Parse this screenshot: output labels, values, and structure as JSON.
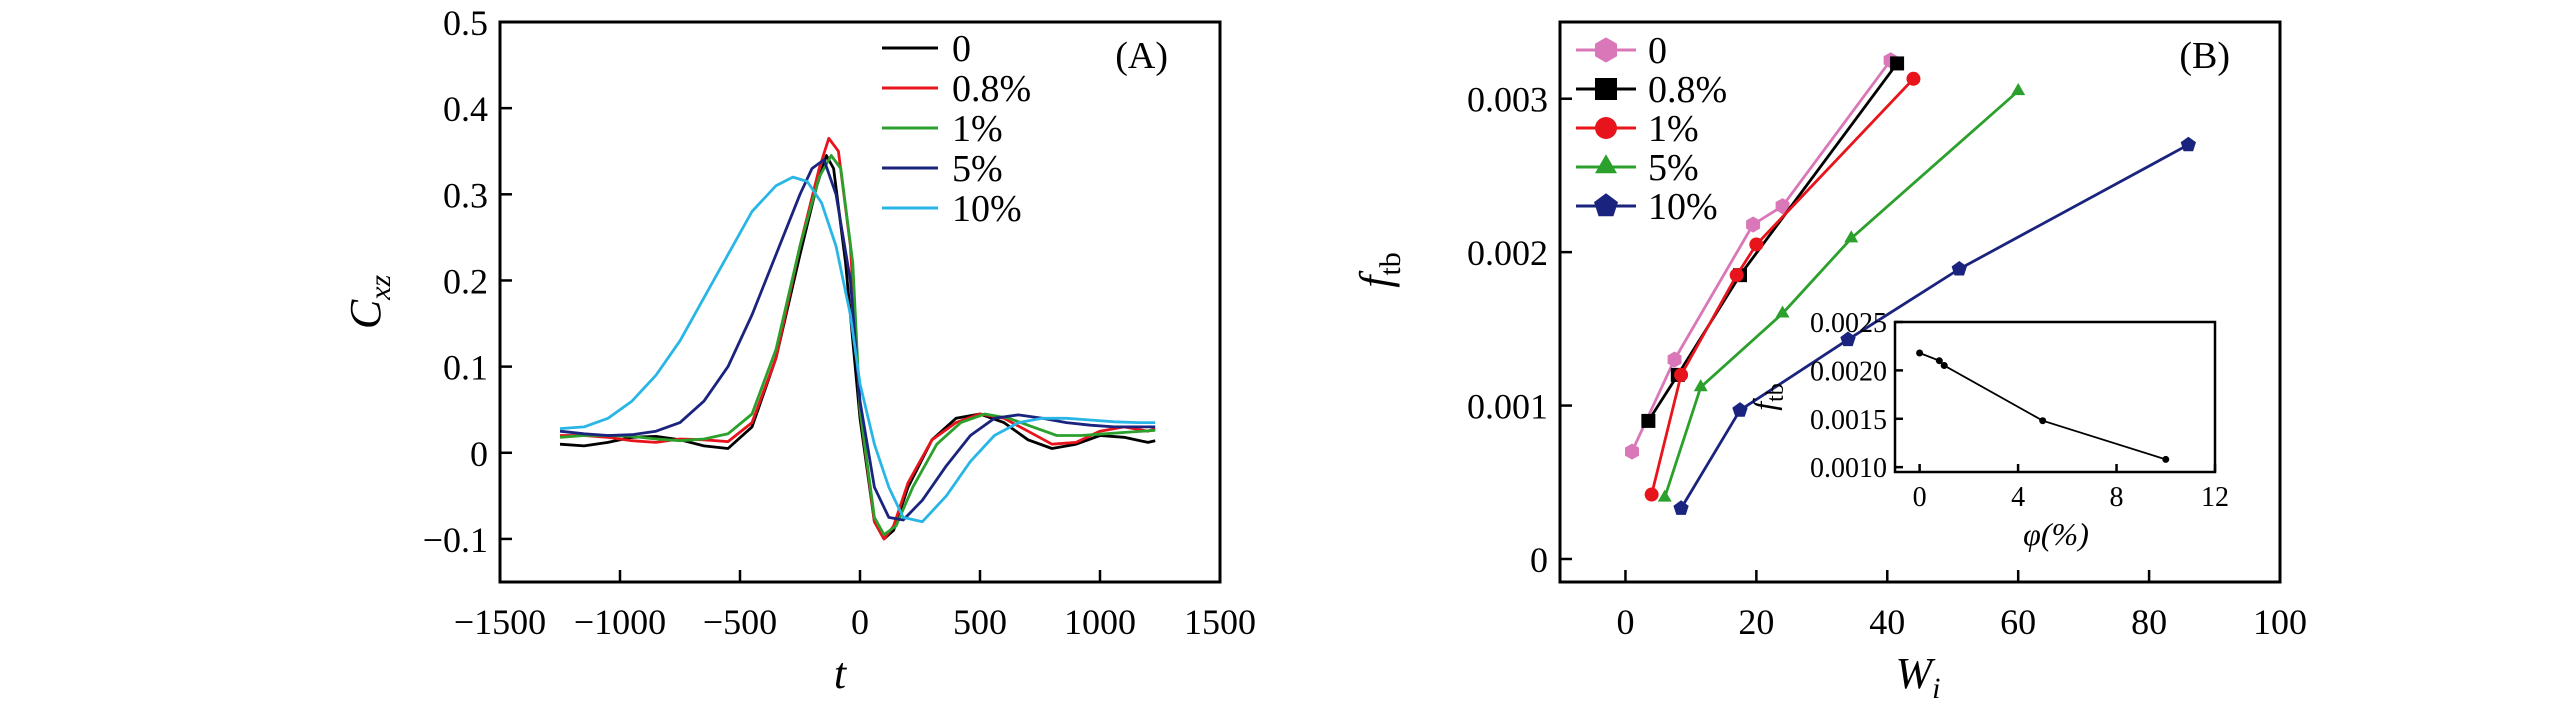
{
  "chart_data": [
    {
      "type": "line",
      "panel_label": "(A)",
      "xlabel": "t",
      "ylabel": "C",
      "ylabel_sub": "xz",
      "xlim": [
        -1500,
        1500
      ],
      "ylim": [
        -0.15,
        0.5
      ],
      "xticks": [
        "−1500",
        "−1000",
        "−500",
        "0",
        "500",
        "1000",
        "1500"
      ],
      "yticks": [
        "−0.1",
        "0",
        "0.1",
        "0.2",
        "0.3",
        "0.4",
        "0.5"
      ],
      "grid": false,
      "legend_position": "top-right",
      "series": [
        {
          "name": "0",
          "color": "#000000",
          "x": [
            -1250,
            -1150,
            -1050,
            -950,
            -850,
            -750,
            -650,
            -550,
            -450,
            -350,
            -250,
            -180,
            -140,
            -110,
            -60,
            0,
            60,
            100,
            140,
            200,
            300,
            400,
            500,
            600,
            700,
            800,
            900,
            1000,
            1100,
            1200,
            1230
          ],
          "y": [
            0.01,
            0.008,
            0.012,
            0.018,
            0.019,
            0.015,
            0.008,
            0.005,
            0.03,
            0.11,
            0.23,
            0.31,
            0.345,
            0.33,
            0.22,
            0.04,
            -0.08,
            -0.1,
            -0.09,
            -0.04,
            0.015,
            0.04,
            0.045,
            0.035,
            0.015,
            0.005,
            0.01,
            0.02,
            0.018,
            0.012,
            0.014
          ]
        },
        {
          "name": "0.8%",
          "color": "#e8141c",
          "x": [
            -1250,
            -1150,
            -1050,
            -950,
            -850,
            -750,
            -650,
            -550,
            -450,
            -350,
            -250,
            -170,
            -130,
            -90,
            -40,
            0,
            60,
            100,
            140,
            200,
            300,
            400,
            500,
            600,
            700,
            800,
            900,
            1000,
            1100,
            1200,
            1230
          ],
          "y": [
            0.02,
            0.02,
            0.018,
            0.014,
            0.012,
            0.016,
            0.015,
            0.013,
            0.035,
            0.11,
            0.24,
            0.33,
            0.365,
            0.35,
            0.24,
            0.05,
            -0.08,
            -0.1,
            -0.085,
            -0.035,
            0.015,
            0.035,
            0.045,
            0.04,
            0.025,
            0.01,
            0.012,
            0.025,
            0.03,
            0.025,
            0.028
          ]
        },
        {
          "name": "1%",
          "color": "#2ca02c",
          "x": [
            -1250,
            -1150,
            -1050,
            -950,
            -850,
            -750,
            -650,
            -550,
            -450,
            -350,
            -250,
            -170,
            -120,
            -80,
            -30,
            0,
            60,
            100,
            150,
            220,
            320,
            420,
            520,
            620,
            720,
            820,
            920,
            1020,
            1120,
            1230
          ],
          "y": [
            0.018,
            0.02,
            0.02,
            0.019,
            0.016,
            0.014,
            0.016,
            0.022,
            0.045,
            0.12,
            0.24,
            0.32,
            0.345,
            0.33,
            0.22,
            0.05,
            -0.075,
            -0.095,
            -0.085,
            -0.04,
            0.01,
            0.035,
            0.045,
            0.04,
            0.03,
            0.02,
            0.02,
            0.022,
            0.024,
            0.026
          ]
        },
        {
          "name": "5%",
          "color": "#1a237e",
          "x": [
            -1250,
            -1150,
            -1050,
            -950,
            -850,
            -750,
            -650,
            -550,
            -450,
            -350,
            -250,
            -200,
            -150,
            -100,
            -40,
            0,
            60,
            120,
            180,
            260,
            360,
            460,
            560,
            660,
            760,
            860,
            960,
            1060,
            1160,
            1230
          ],
          "y": [
            0.025,
            0.022,
            0.02,
            0.021,
            0.025,
            0.035,
            0.06,
            0.1,
            0.16,
            0.23,
            0.3,
            0.33,
            0.34,
            0.3,
            0.2,
            0.06,
            -0.04,
            -0.075,
            -0.078,
            -0.055,
            -0.015,
            0.02,
            0.04,
            0.044,
            0.04,
            0.035,
            0.032,
            0.03,
            0.03,
            0.03
          ]
        },
        {
          "name": "10%",
          "color": "#29b6e6",
          "x": [
            -1250,
            -1150,
            -1050,
            -950,
            -850,
            -750,
            -650,
            -550,
            -450,
            -350,
            -280,
            -220,
            -160,
            -100,
            -40,
            0,
            60,
            120,
            180,
            260,
            360,
            460,
            560,
            660,
            760,
            860,
            960,
            1060,
            1160,
            1230
          ],
          "y": [
            0.028,
            0.03,
            0.04,
            0.06,
            0.09,
            0.13,
            0.18,
            0.23,
            0.28,
            0.31,
            0.32,
            0.315,
            0.29,
            0.24,
            0.16,
            0.08,
            0.01,
            -0.04,
            -0.075,
            -0.08,
            -0.05,
            -0.01,
            0.02,
            0.035,
            0.04,
            0.04,
            0.038,
            0.036,
            0.035,
            0.035
          ]
        }
      ]
    },
    {
      "type": "line",
      "panel_label": "(B)",
      "xlabel": "W",
      "xlabel_sub": "i",
      "ylabel": "f",
      "ylabel_sub": "tb",
      "xlim": [
        -10,
        100
      ],
      "ylim": [
        -0.00015,
        0.0035
      ],
      "xticks": [
        "0",
        "20",
        "40",
        "60",
        "80",
        "100"
      ],
      "yticks": [
        "0",
        "0.001",
        "0.002",
        "0.003"
      ],
      "grid": false,
      "legend_position": "top-left",
      "series": [
        {
          "name": "0",
          "color": "#d977b8",
          "marker": "hexagon",
          "x": [
            1,
            7.5,
            19.5,
            24,
            40.5
          ],
          "y": [
            0.0007,
            0.0013,
            0.00218,
            0.0023,
            0.00325
          ]
        },
        {
          "name": "0.8%",
          "color": "#000000",
          "marker": "square",
          "x": [
            3.5,
            8,
            17.5,
            41.5
          ],
          "y": [
            0.0009,
            0.0012,
            0.00185,
            0.00323
          ]
        },
        {
          "name": "1%",
          "color": "#e8141c",
          "marker": "circle",
          "x": [
            4,
            8.5,
            17,
            20,
            44
          ],
          "y": [
            0.00042,
            0.0012,
            0.00185,
            0.00205,
            0.00313
          ]
        },
        {
          "name": "5%",
          "color": "#2ca02c",
          "marker": "triangle",
          "x": [
            6,
            11.5,
            24,
            34.5,
            60
          ],
          "y": [
            0.0004,
            0.00112,
            0.0016,
            0.00209,
            0.00305
          ]
        },
        {
          "name": "10%",
          "color": "#1a237e",
          "marker": "pentagon",
          "x": [
            8.5,
            17.5,
            34,
            51,
            86
          ],
          "y": [
            0.00033,
            0.00097,
            0.00143,
            0.00189,
            0.0027
          ]
        }
      ],
      "inset": {
        "type": "line",
        "xlabel": "φ(%)",
        "ylabel": "f",
        "ylabel_sub": "tb",
        "xlim": [
          -1,
          12
        ],
        "ylim": [
          0.00095,
          0.0025
        ],
        "xticks": [
          "0",
          "4",
          "8",
          "12"
        ],
        "yticks": [
          "0.0010",
          "0.0015",
          "0.0020",
          "0.0025"
        ],
        "color": "#000000",
        "x": [
          0,
          0.8,
          1,
          5,
          10
        ],
        "y": [
          0.00218,
          0.0021,
          0.00205,
          0.00148,
          0.00108
        ]
      }
    }
  ]
}
